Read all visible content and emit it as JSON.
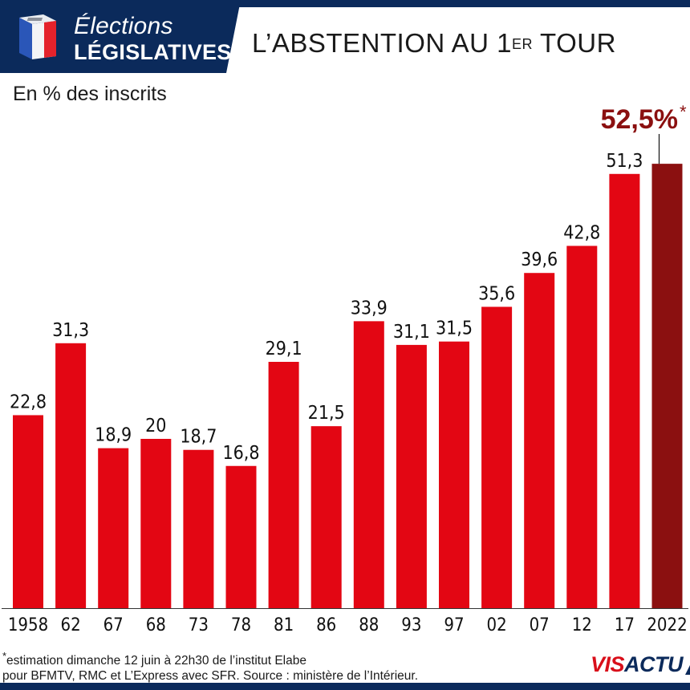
{
  "header": {
    "brand_line1": "Élections",
    "brand_line2": "LÉGISLATIVES",
    "title_main": "L’ABSTENTION AU 1",
    "title_sup": "ER",
    "title_end": " TOUR",
    "icon": "ballot-box-icon"
  },
  "unit_label": "En % des inscrits",
  "chart_data": {
    "type": "bar",
    "title": "L’ABSTENTION AU 1ER TOUR",
    "ylabel": "En % des inscrits",
    "xlabel": "",
    "categories": [
      "1958",
      "62",
      "67",
      "68",
      "73",
      "78",
      "81",
      "86",
      "88",
      "93",
      "97",
      "02",
      "07",
      "12",
      "17",
      "2022"
    ],
    "values": [
      22.8,
      31.3,
      18.9,
      20,
      18.7,
      16.8,
      29.1,
      21.5,
      33.9,
      31.1,
      31.5,
      35.6,
      39.6,
      42.8,
      51.3,
      52.5
    ],
    "value_labels": [
      "22,8",
      "31,3",
      "18,9",
      "20",
      "18,7",
      "16,8",
      "29,1",
      "21,5",
      "33,9",
      "31,1",
      "31,5",
      "35,6",
      "39,6",
      "42,8",
      "51,3",
      ""
    ],
    "highlight": {
      "index": 15,
      "label": "52,5%",
      "marker": "*",
      "color": "#8b1010"
    },
    "ylim": [
      0,
      60
    ],
    "grid": false,
    "bar_color": "#e30613"
  },
  "footnote": {
    "line1_marker": "*",
    "line1": "estimation dimanche 12 juin à 22h30 de l’institut Elabe",
    "line2": "pour BFMTV, RMC et L’Express avec SFR.  Source : ministère de l’Intérieur."
  },
  "logo": {
    "part1": "VIS",
    "part2": "ACTU",
    "colors": {
      "red": "#d90f1a",
      "navy": "#0b2a5b"
    }
  },
  "colors": {
    "navy": "#0b2a5b",
    "bar": "#e30613",
    "highlight": "#8b1010"
  }
}
